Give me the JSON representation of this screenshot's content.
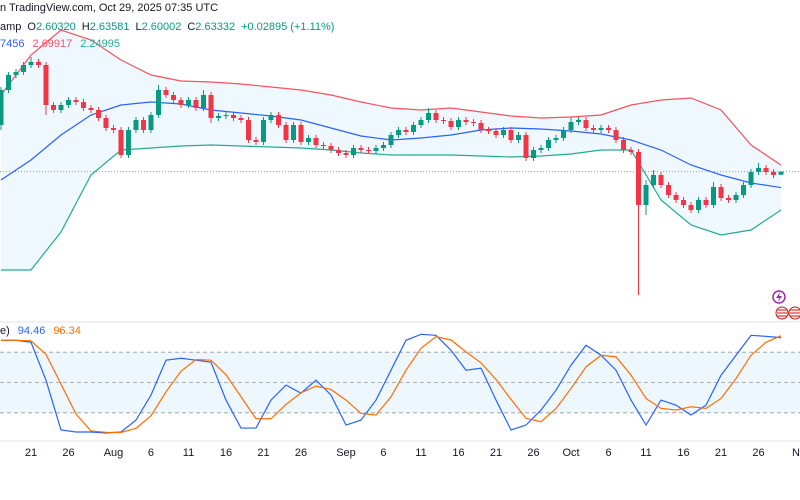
{
  "chart_data": {
    "type": "candlestick",
    "header": {
      "source": "n TradingView.com, Oct 29, 2025 07:35 UTC",
      "symbol": "amp",
      "ohlc": [
        {
          "key": "O",
          "value": "2.60320"
        },
        {
          "key": "H",
          "value": "2.63581"
        },
        {
          "key": "L",
          "value": "2.60002"
        },
        {
          "key": "C",
          "value": "2.63332"
        }
      ],
      "change": "+0.02895 (+1.11%)",
      "bands_legend": [
        "7456",
        "2.69917",
        "2.24995"
      ],
      "stoch_legend": [
        "e)",
        "94.46",
        "96.34"
      ]
    },
    "up_color": "#089981",
    "down_color": "#f23645",
    "xlim": [
      -0.13,
      106.53
    ],
    "ylim": [
      1.15,
      4.07
    ],
    "xticks": [
      {
        "value": 4,
        "label": "21"
      },
      {
        "value": 9,
        "label": "26"
      },
      {
        "value": 15,
        "label": "Aug"
      },
      {
        "value": 20,
        "label": "6"
      },
      {
        "value": 25,
        "label": "11"
      },
      {
        "value": 30,
        "label": "16"
      },
      {
        "value": 35,
        "label": "21"
      },
      {
        "value": 40,
        "label": "26"
      },
      {
        "value": 46,
        "label": "Sep"
      },
      {
        "value": 51,
        "label": "6"
      },
      {
        "value": 56,
        "label": "11"
      },
      {
        "value": 61,
        "label": "16"
      },
      {
        "value": 66,
        "label": "21"
      },
      {
        "value": 71,
        "label": "26"
      },
      {
        "value": 76,
        "label": "Oct"
      },
      {
        "value": 81,
        "label": "6"
      },
      {
        "value": 86,
        "label": "11"
      },
      {
        "value": 91,
        "label": "16"
      },
      {
        "value": 96,
        "label": "21"
      },
      {
        "value": 101,
        "label": "26"
      },
      {
        "value": 106,
        "label": "N"
      }
    ],
    "candles": [
      [
        3.1,
        3.48,
        3.05,
        3.45
      ],
      [
        3.45,
        3.63,
        3.42,
        3.6
      ],
      [
        3.6,
        3.66,
        3.57,
        3.63
      ],
      [
        3.63,
        3.73,
        3.6,
        3.7
      ],
      [
        3.7,
        3.78,
        3.67,
        3.73
      ],
      [
        3.73,
        3.76,
        3.67,
        3.7
      ],
      [
        3.7,
        3.73,
        3.2,
        3.3
      ],
      [
        3.3,
        3.33,
        3.22,
        3.25
      ],
      [
        3.25,
        3.33,
        3.22,
        3.3
      ],
      [
        3.3,
        3.38,
        3.27,
        3.35
      ],
      [
        3.35,
        3.38,
        3.3,
        3.33
      ],
      [
        3.33,
        3.36,
        3.24,
        3.27
      ],
      [
        3.27,
        3.3,
        3.22,
        3.25
      ],
      [
        3.25,
        3.28,
        3.14,
        3.17
      ],
      [
        3.17,
        3.2,
        3.04,
        3.07
      ],
      [
        3.07,
        3.1,
        3.02,
        3.05
      ],
      [
        3.05,
        3.08,
        2.77,
        2.8
      ],
      [
        2.8,
        3.08,
        2.77,
        3.05
      ],
      [
        3.05,
        3.18,
        3.02,
        3.15
      ],
      [
        3.15,
        3.18,
        3.02,
        3.05
      ],
      [
        3.05,
        3.23,
        3.02,
        3.2
      ],
      [
        3.2,
        3.5,
        3.17,
        3.45
      ],
      [
        3.45,
        3.48,
        3.37,
        3.4
      ],
      [
        3.4,
        3.43,
        3.32,
        3.35
      ],
      [
        3.35,
        3.38,
        3.27,
        3.3
      ],
      [
        3.3,
        3.38,
        3.27,
        3.35
      ],
      [
        3.35,
        3.38,
        3.24,
        3.27
      ],
      [
        3.27,
        3.45,
        3.24,
        3.4
      ],
      [
        3.4,
        3.43,
        3.12,
        3.17
      ],
      [
        3.17,
        3.22,
        3.14,
        3.19
      ],
      [
        3.19,
        3.23,
        3.16,
        3.2
      ],
      [
        3.2,
        3.23,
        3.14,
        3.17
      ],
      [
        3.17,
        3.2,
        3.12,
        3.15
      ],
      [
        3.15,
        3.18,
        2.92,
        2.95
      ],
      [
        2.95,
        2.98,
        2.9,
        2.93
      ],
      [
        2.93,
        3.18,
        2.9,
        3.15
      ],
      [
        3.15,
        3.23,
        3.12,
        3.2
      ],
      [
        3.2,
        3.23,
        3.07,
        3.1
      ],
      [
        3.1,
        3.13,
        2.92,
        2.95
      ],
      [
        2.95,
        3.13,
        2.92,
        3.1
      ],
      [
        3.1,
        3.13,
        2.9,
        2.93
      ],
      [
        2.93,
        3.0,
        2.9,
        2.97
      ],
      [
        2.97,
        3.0,
        2.87,
        2.9
      ],
      [
        2.9,
        2.93,
        2.86,
        2.89
      ],
      [
        2.89,
        2.92,
        2.82,
        2.85
      ],
      [
        2.85,
        2.88,
        2.79,
        2.82
      ],
      [
        2.82,
        2.85,
        2.77,
        2.8
      ],
      [
        2.8,
        2.9,
        2.77,
        2.87
      ],
      [
        2.87,
        2.9,
        2.82,
        2.85
      ],
      [
        2.85,
        2.88,
        2.81,
        2.84
      ],
      [
        2.84,
        2.9,
        2.81,
        2.87
      ],
      [
        2.87,
        2.93,
        2.84,
        2.9
      ],
      [
        2.9,
        3.03,
        2.87,
        3.0
      ],
      [
        3.0,
        3.08,
        2.97,
        3.05
      ],
      [
        3.05,
        3.08,
        3.0,
        3.03
      ],
      [
        3.03,
        3.13,
        3.0,
        3.1
      ],
      [
        3.1,
        3.18,
        3.07,
        3.15
      ],
      [
        3.15,
        3.27,
        3.12,
        3.22
      ],
      [
        3.22,
        3.25,
        3.12,
        3.15
      ],
      [
        3.15,
        3.18,
        3.11,
        3.14
      ],
      [
        3.14,
        3.17,
        3.05,
        3.08
      ],
      [
        3.08,
        3.18,
        3.05,
        3.15
      ],
      [
        3.15,
        3.18,
        3.1,
        3.13
      ],
      [
        3.13,
        3.16,
        3.09,
        3.12
      ],
      [
        3.12,
        3.15,
        3.02,
        3.05
      ],
      [
        3.05,
        3.08,
        3.01,
        3.04
      ],
      [
        3.04,
        3.07,
        2.97,
        3.0
      ],
      [
        3.0,
        3.08,
        2.97,
        3.05
      ],
      [
        3.05,
        3.08,
        2.92,
        2.95
      ],
      [
        2.95,
        3.03,
        2.92,
        3.0
      ],
      [
        3.0,
        3.03,
        2.74,
        2.77
      ],
      [
        2.77,
        2.88,
        2.74,
        2.85
      ],
      [
        2.85,
        2.9,
        2.82,
        2.87
      ],
      [
        2.87,
        2.98,
        2.84,
        2.95
      ],
      [
        2.95,
        3.0,
        2.92,
        2.97
      ],
      [
        2.97,
        3.08,
        2.94,
        3.05
      ],
      [
        3.05,
        3.18,
        3.02,
        3.13
      ],
      [
        3.13,
        3.18,
        3.1,
        3.15
      ],
      [
        3.15,
        3.18,
        3.04,
        3.07
      ],
      [
        3.07,
        3.1,
        3.02,
        3.05
      ],
      [
        3.05,
        3.1,
        3.02,
        3.07
      ],
      [
        3.07,
        3.1,
        3.02,
        3.05
      ],
      [
        3.05,
        3.08,
        2.92,
        2.95
      ],
      [
        2.95,
        2.98,
        2.82,
        2.85
      ],
      [
        2.85,
        2.88,
        2.8,
        2.83
      ],
      [
        2.83,
        2.86,
        1.4,
        2.3
      ],
      [
        2.3,
        2.55,
        2.2,
        2.5
      ],
      [
        2.5,
        2.65,
        2.47,
        2.6
      ],
      [
        2.6,
        2.63,
        2.47,
        2.5
      ],
      [
        2.5,
        2.53,
        2.37,
        2.4
      ],
      [
        2.4,
        2.43,
        2.32,
        2.35
      ],
      [
        2.35,
        2.38,
        2.27,
        2.3
      ],
      [
        2.3,
        2.33,
        2.22,
        2.25
      ],
      [
        2.25,
        2.38,
        2.22,
        2.35
      ],
      [
        2.35,
        2.38,
        2.27,
        2.3
      ],
      [
        2.3,
        2.53,
        2.27,
        2.48
      ],
      [
        2.48,
        2.51,
        2.34,
        2.37
      ],
      [
        2.37,
        2.4,
        2.32,
        2.35
      ],
      [
        2.35,
        2.43,
        2.32,
        2.4
      ],
      [
        2.4,
        2.53,
        2.37,
        2.5
      ],
      [
        2.5,
        2.66,
        2.47,
        2.63
      ],
      [
        2.63,
        2.72,
        2.6,
        2.67
      ],
      [
        2.67,
        2.7,
        2.6,
        2.63
      ],
      [
        2.63,
        2.66,
        2.57,
        2.6
      ],
      [
        2.6032,
        2.63581,
        2.60002,
        2.63332
      ]
    ],
    "bands": {
      "x": [
        0,
        4,
        8,
        12,
        16,
        20,
        24,
        28,
        32,
        36,
        40,
        44,
        48,
        52,
        56,
        60,
        64,
        68,
        72,
        76,
        80,
        84,
        88,
        92,
        96,
        100,
        104
      ],
      "fill": "rgba(33,150,243,0.07)",
      "series": [
        {
          "color": "#f7525f",
          "values": [
            3.4,
            3.8,
            4.05,
            3.95,
            3.75,
            3.6,
            3.54,
            3.53,
            3.51,
            3.48,
            3.45,
            3.4,
            3.33,
            3.27,
            3.25,
            3.27,
            3.23,
            3.19,
            3.17,
            3.18,
            3.2,
            3.3,
            3.35,
            3.37,
            3.25,
            2.9,
            2.69917
          ]
        },
        {
          "color": "#2962ff",
          "values": [
            2.55,
            2.75,
            3.0,
            3.2,
            3.3,
            3.33,
            3.31,
            3.25,
            3.22,
            3.19,
            3.15,
            3.07,
            2.99,
            2.95,
            2.97,
            3.0,
            3.05,
            3.07,
            3.06,
            3.04,
            3.01,
            2.95,
            2.85,
            2.7,
            2.6,
            2.52,
            2.47456
          ]
        },
        {
          "color": "#22ab94",
          "values": [
            1.65,
            1.65,
            2.03,
            2.6,
            2.85,
            2.87,
            2.89,
            2.9,
            2.89,
            2.88,
            2.87,
            2.85,
            2.82,
            2.8,
            2.8,
            2.8,
            2.79,
            2.78,
            2.79,
            2.81,
            2.85,
            2.85,
            2.35,
            2.1,
            2.0,
            2.05,
            2.24995
          ]
        }
      ]
    },
    "stochastic": {
      "x": [
        0,
        2,
        4,
        6,
        8,
        10,
        12,
        14,
        16,
        18,
        20,
        22,
        24,
        26,
        28,
        30,
        32,
        34,
        36,
        38,
        40,
        42,
        44,
        46,
        48,
        50,
        52,
        54,
        56,
        58,
        60,
        62,
        64,
        66,
        68,
        70,
        72,
        74,
        76,
        78,
        80,
        82,
        84,
        86,
        88,
        90,
        92,
        94,
        96,
        98,
        100,
        102,
        104
      ],
      "ylim": [
        0,
        100
      ],
      "levels": [
        80,
        50,
        20
      ],
      "fill": "rgba(33,150,243,0.08)",
      "series": [
        {
          "color": "#2962ff",
          "values": [
            91.8,
            91.8,
            89.8,
            52.3,
            3.0,
            1.0,
            1.0,
            0,
            1.0,
            12.8,
            37.5,
            72.1,
            74.0,
            72.1,
            70.1,
            32.6,
            4.9,
            4.9,
            32.6,
            47.4,
            39.5,
            52.3,
            37.5,
            7.9,
            12.8,
            32.6,
            62.2,
            91.8,
            97.7,
            96.7,
            81.9,
            62.2,
            64.2,
            32.6,
            3.0,
            7.9,
            22.7,
            42.4,
            67.1,
            86.9,
            77.0,
            62.2,
            32.6,
            7.9,
            32.6,
            27.6,
            17.8,
            27.6,
            57.2,
            77.0,
            96.7,
            95.7,
            94.46
          ]
        },
        {
          "color": "#ff6d00",
          "values": [
            91.8,
            91.8,
            91.2,
            77.9,
            48.4,
            18.8,
            2.0,
            0.7,
            0.5,
            4.6,
            17.1,
            40.8,
            61.2,
            72.7,
            72.1,
            57.6,
            35.9,
            14.1,
            14.1,
            28.3,
            39.8,
            46.4,
            43.1,
            32.6,
            19.4,
            17.8,
            35.9,
            62.2,
            83.9,
            95.4,
            92.1,
            80.3,
            69.4,
            53.0,
            33.3,
            14.5,
            11.2,
            24.3,
            44.1,
            65.5,
            77.0,
            75.4,
            57.3,
            34.2,
            24.4,
            22.7,
            26.0,
            24.4,
            34.2,
            53.9,
            77.0,
            89.8,
            96.34
          ]
        }
      ]
    }
  }
}
